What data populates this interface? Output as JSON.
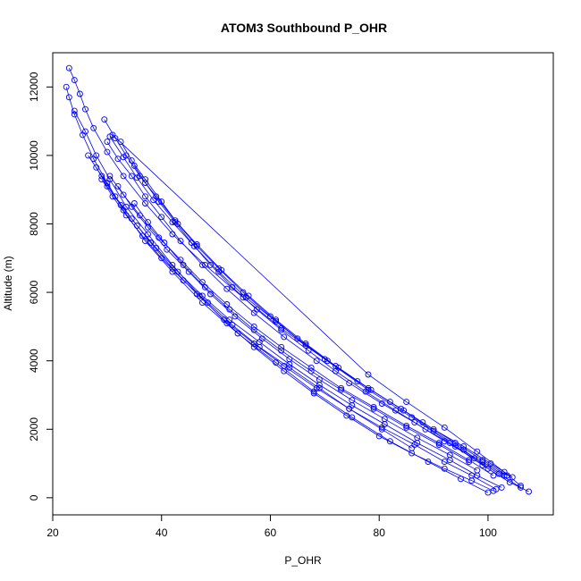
{
  "chart_data": {
    "type": "scatter",
    "title": "ATOM3 Southbound P_OHR",
    "xlabel": "P_OHR",
    "ylabel": "Altitude (m)",
    "xlim": [
      20,
      112
    ],
    "ylim": [
      -500,
      13000
    ],
    "xticks": [
      20,
      40,
      60,
      80,
      100
    ],
    "yticks": [
      0,
      2000,
      4000,
      6000,
      8000,
      10000,
      12000
    ],
    "grid": false,
    "legend": "none",
    "color": "#0000ff",
    "series": [
      {
        "x": [
          23.0,
          24.0,
          25.0,
          26.0,
          27.5,
          30.0,
          33.0,
          37.0,
          42.0,
          48.0,
          55.0,
          62.0,
          70.0,
          78.0,
          86.0,
          93.0,
          99.0,
          104.0,
          107.5
        ],
        "y": [
          12550,
          12200,
          11800,
          11350,
          10800,
          10100,
          9400,
          8600,
          7700,
          6800,
          5850,
          4950,
          4050,
          3150,
          2350,
          1600,
          950,
          450,
          180
        ]
      },
      {
        "x": [
          22.5,
          23.0,
          24.0,
          25.5,
          27.5,
          30.0,
          33.0,
          37.0,
          42.0,
          47.5,
          54.0,
          61.0,
          68.0,
          75.0,
          82.0,
          89.0,
          95.0,
          100.0
        ],
        "y": [
          12000,
          11700,
          11200,
          10600,
          9900,
          9200,
          8400,
          7500,
          6600,
          5700,
          4800,
          3950,
          3100,
          2350,
          1650,
          1050,
          550,
          150
        ]
      },
      {
        "x": [
          24.0,
          26.0,
          28.0,
          30.5,
          33.5,
          37.5,
          42.0,
          47.0,
          52.0,
          57.0,
          62.5,
          68.0,
          74.0,
          80.0,
          86.0,
          92.0,
          97.0,
          101.0
        ],
        "y": [
          11300,
          10700,
          10000,
          9300,
          8500,
          7700,
          6800,
          5900,
          5100,
          4400,
          3700,
          3050,
          2400,
          1800,
          1300,
          850,
          500,
          200
        ]
      },
      {
        "x": [
          29.5,
          31.5,
          33.5,
          36.0,
          39.0,
          42.5,
          46.5,
          51.0,
          56.0,
          61.0,
          66.5,
          72.0,
          78.0,
          84.0,
          90.0,
          95.5,
          100.5,
          104.5
        ],
        "y": [
          11050,
          10500,
          10000,
          9400,
          8800,
          8100,
          7400,
          6650,
          5900,
          5200,
          4500,
          3850,
          3200,
          2600,
          2000,
          1500,
          1000,
          600
        ]
      },
      {
        "x": [
          30.0,
          32.0,
          34.5,
          37.0,
          40.0,
          43.5,
          47.5,
          52.0,
          57.0,
          62.5,
          68.5,
          74.5,
          80.5,
          86.5,
          92.0,
          97.5,
          102.0,
          106.0
        ],
        "y": [
          10400,
          9900,
          9400,
          8800,
          8200,
          7500,
          6800,
          6100,
          5400,
          4700,
          4000,
          3350,
          2750,
          2200,
          1650,
          1150,
          700,
          300
        ]
      },
      {
        "x": [
          32.5,
          34.5,
          37.0,
          40.0,
          43.0,
          46.5,
          50.5,
          55.0,
          60.0,
          65.0,
          70.5,
          76.0,
          82.0,
          88.0,
          94.0,
          99.0,
          103.5
        ],
        "y": [
          10400,
          9850,
          9300,
          8650,
          8000,
          7350,
          6700,
          6000,
          5300,
          4650,
          4000,
          3400,
          2800,
          2200,
          1600,
          1100,
          650
        ]
      },
      {
        "x": [
          30.5,
          33.0,
          35.5,
          38.5,
          42.0,
          46.0,
          50.5,
          55.5,
          61.0,
          66.5,
          72.5,
          78.5,
          84.5,
          90.0,
          95.5,
          100.0
        ],
        "y": [
          10550,
          9950,
          9350,
          8700,
          8050,
          7350,
          6600,
          5850,
          5150,
          4450,
          3800,
          3150,
          2550,
          1950,
          1400,
          850
        ]
      },
      {
        "x": [
          28.0,
          30.0,
          32.5,
          35.5,
          39.0,
          43.0,
          47.5,
          52.5,
          58.0,
          63.5,
          69.0,
          75.0,
          81.0,
          87.0,
          93.0,
          98.0,
          102.5
        ],
        "y": [
          9650,
          9100,
          8550,
          7950,
          7300,
          6600,
          5900,
          5200,
          4550,
          3900,
          3300,
          2700,
          2150,
          1600,
          1100,
          650,
          300
        ]
      },
      {
        "x": [
          30.5,
          33.0,
          36.0,
          39.5,
          43.5,
          47.5,
          52.0,
          57.0,
          62.0,
          67.5,
          73.0,
          79.0,
          85.0,
          91.0,
          96.5,
          101.0
        ],
        "y": [
          9400,
          8850,
          8250,
          7600,
          6950,
          6300,
          5650,
          5000,
          4400,
          3800,
          3200,
          2650,
          2100,
          1600,
          1100,
          650
        ]
      },
      {
        "x": [
          26.5,
          29.0,
          31.5,
          34.5,
          38.0,
          42.0,
          46.5,
          51.5,
          57.0,
          62.5,
          68.5,
          74.5,
          80.5,
          86.5,
          92.0,
          97.0,
          101.5
        ],
        "y": [
          10000,
          9400,
          8800,
          8150,
          7450,
          6700,
          5950,
          5200,
          4500,
          3850,
          3200,
          2600,
          2050,
          1550,
          1050,
          650,
          250
        ]
      },
      {
        "x": [
          29.0,
          31.0,
          33.5,
          36.5,
          40.0,
          44.0,
          48.5,
          53.0,
          58.0,
          63.5,
          69.0,
          74.5,
          80.5,
          86.0
        ],
        "y": [
          9300,
          8800,
          8250,
          7650,
          7000,
          6350,
          5700,
          5050,
          4400,
          3800,
          3200,
          2600,
          2000,
          1450
        ]
      },
      {
        "x": [
          32.0,
          34.5,
          37.5,
          41.0,
          45.0,
          49.0,
          53.5,
          58.5,
          63.5,
          69.0,
          75.0,
          81.0,
          87.0,
          93.0,
          98.0
        ],
        "y": [
          9100,
          8500,
          7900,
          7250,
          6600,
          5950,
          5300,
          4650,
          4050,
          3450,
          2850,
          2300,
          1750,
          1250,
          800
        ]
      },
      {
        "x": [
          35.0,
          37.0,
          39.5,
          42.5,
          45.5,
          49.0,
          53.0,
          57.5,
          62.0,
          67.0,
          72.0,
          77.5,
          83.0,
          88.5,
          94.0,
          99.0,
          103.0
        ],
        "y": [
          9700,
          9200,
          8650,
          8050,
          7450,
          6800,
          6150,
          5500,
          4900,
          4300,
          3700,
          3100,
          2550,
          2000,
          1500,
          1050,
          650
        ]
      },
      {
        "x": [
          31.0,
          78.0,
          85.0,
          92.0,
          98.0,
          103.0,
          106.0
        ],
        "y": [
          10600,
          3600,
          2800,
          2050,
          1350,
          750,
          350
        ]
      },
      {
        "x": [
          35.0,
          37.5,
          40.5,
          44.0,
          48.0,
          52.5,
          57.0,
          62.0,
          67.5,
          73.0,
          79.0,
          85.0,
          91.0,
          96.5
        ],
        "y": [
          8600,
          8050,
          7450,
          6800,
          6150,
          5500,
          4900,
          4300,
          3700,
          3150,
          2600,
          2050,
          1550,
          1050
        ]
      }
    ]
  }
}
